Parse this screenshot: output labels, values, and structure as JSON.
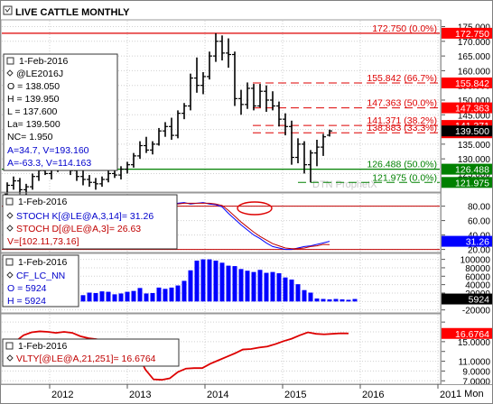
{
  "title": "LIVE CATTLE MONTHLY",
  "timeframe_label": "1 Mon",
  "watermark": "DTN ProphetX",
  "colors": {
    "bars": "#000000",
    "axis_bg_red": "#ff0000",
    "axis_bg_green": "#008000",
    "axis_bg_black": "#000000",
    "axis_bg_blue": "#0000ff",
    "stoch_k": "#0000ff",
    "stoch_d": "#c00000",
    "cf_bars": "#0000ff",
    "vlty": "#dd0000",
    "fib_line": "#dd0000",
    "support_line": "#008000"
  },
  "chart_data": [
    {
      "type": "bar",
      "name": "price",
      "ylim": [
        119,
        177
      ],
      "yticks": [
        125,
        130,
        135,
        140,
        145,
        150,
        155,
        160,
        165,
        170,
        175
      ],
      "xticks": [
        "2012",
        "2013",
        "2014",
        "2015",
        "2016",
        "201"
      ],
      "info": {
        "date": "1-Feb-2016",
        "symbol": "@LE2016J",
        "open": "O = 138.050",
        "high": "H = 139.950",
        "low": "L = 137.600",
        "last": "La= 139.500",
        "net_change": "NC= 1.950",
        "cursor1": "A=34.7, V=193.160",
        "cursor2": "A=-63.3, V=114.163"
      },
      "levels": [
        {
          "label": "172.750 (0.0%)",
          "value": 172.75,
          "axis": "172.750",
          "style": "solid",
          "color": "red"
        },
        {
          "label": "155.842 (66.7%)",
          "value": 155.842,
          "axis": "155.842",
          "style": "dashed",
          "color": "red"
        },
        {
          "label": "147.363 (50.0%)",
          "value": 147.363,
          "axis": "147.363",
          "style": "dashed",
          "color": "red"
        },
        {
          "label": "141.371 (38.2%)",
          "value": 141.371,
          "axis": "141.371",
          "style": "dashed",
          "color": "red"
        },
        {
          "label": "138.883 (33.3%)",
          "value": 138.883,
          "axis": "138.883",
          "style": "dashed",
          "color": "red"
        },
        {
          "label": "126.488 (50.0%)",
          "value": 126.488,
          "axis": "126.488",
          "style": "solid",
          "color": "green"
        },
        {
          "label": "121.975 (0.0%)",
          "value": 121.975,
          "axis": "121.975",
          "style": "dashed",
          "color": "green"
        }
      ],
      "last_price": "139.500",
      "last_price_value": 139.5,
      "bars": [
        {
          "o": 118.0,
          "h": 122.0,
          "l": 116.5,
          "c": 121.0
        },
        {
          "o": 121.0,
          "h": 124.0,
          "l": 119.5,
          "c": 122.5
        },
        {
          "o": 122.5,
          "h": 123.5,
          "l": 118.0,
          "c": 119.5
        },
        {
          "o": 119.5,
          "h": 121.5,
          "l": 117.0,
          "c": 120.5
        },
        {
          "o": 120.5,
          "h": 125.0,
          "l": 119.5,
          "c": 124.0
        },
        {
          "o": 124.0,
          "h": 127.0,
          "l": 122.5,
          "c": 126.0
        },
        {
          "o": 126.0,
          "h": 128.5,
          "l": 124.5,
          "c": 125.0
        },
        {
          "o": 125.0,
          "h": 127.5,
          "l": 123.0,
          "c": 126.5
        },
        {
          "o": 126.5,
          "h": 130.5,
          "l": 125.5,
          "c": 129.5
        },
        {
          "o": 129.5,
          "h": 131.5,
          "l": 127.5,
          "c": 128.5
        },
        {
          "o": 128.5,
          "h": 130.0,
          "l": 124.5,
          "c": 126.0
        },
        {
          "o": 126.0,
          "h": 127.5,
          "l": 122.5,
          "c": 124.0
        },
        {
          "o": 124.0,
          "h": 126.0,
          "l": 121.0,
          "c": 123.0
        },
        {
          "o": 123.0,
          "h": 124.5,
          "l": 120.5,
          "c": 122.0
        },
        {
          "o": 122.0,
          "h": 123.5,
          "l": 119.5,
          "c": 121.5
        },
        {
          "o": 121.5,
          "h": 124.0,
          "l": 120.5,
          "c": 123.0
        },
        {
          "o": 123.0,
          "h": 126.0,
          "l": 122.0,
          "c": 125.0
        },
        {
          "o": 125.0,
          "h": 127.0,
          "l": 123.5,
          "c": 124.5
        },
        {
          "o": 124.5,
          "h": 127.5,
          "l": 123.0,
          "c": 126.5
        },
        {
          "o": 126.5,
          "h": 129.0,
          "l": 125.0,
          "c": 128.0
        },
        {
          "o": 128.0,
          "h": 132.0,
          "l": 127.0,
          "c": 131.0
        },
        {
          "o": 131.0,
          "h": 136.0,
          "l": 130.0,
          "c": 134.5
        },
        {
          "o": 134.5,
          "h": 137.5,
          "l": 132.0,
          "c": 133.0
        },
        {
          "o": 133.0,
          "h": 136.0,
          "l": 131.5,
          "c": 135.0
        },
        {
          "o": 135.0,
          "h": 140.5,
          "l": 134.5,
          "c": 139.5
        },
        {
          "o": 139.5,
          "h": 142.5,
          "l": 137.5,
          "c": 141.0
        },
        {
          "o": 141.0,
          "h": 144.0,
          "l": 136.5,
          "c": 138.0
        },
        {
          "o": 138.0,
          "h": 146.5,
          "l": 137.0,
          "c": 145.5
        },
        {
          "o": 145.5,
          "h": 149.0,
          "l": 143.5,
          "c": 148.0
        },
        {
          "o": 148.0,
          "h": 159.0,
          "l": 146.5,
          "c": 157.5
        },
        {
          "o": 157.5,
          "h": 164.5,
          "l": 152.5,
          "c": 155.0
        },
        {
          "o": 155.0,
          "h": 159.5,
          "l": 152.0,
          "c": 158.0
        },
        {
          "o": 158.0,
          "h": 166.5,
          "l": 157.0,
          "c": 165.0
        },
        {
          "o": 165.0,
          "h": 172.75,
          "l": 163.0,
          "c": 170.0
        },
        {
          "o": 170.0,
          "h": 172.0,
          "l": 163.5,
          "c": 166.0
        },
        {
          "o": 166.0,
          "h": 171.0,
          "l": 161.0,
          "c": 165.5
        },
        {
          "o": 165.5,
          "h": 166.5,
          "l": 148.0,
          "c": 150.5
        },
        {
          "o": 150.5,
          "h": 153.5,
          "l": 145.0,
          "c": 148.5
        },
        {
          "o": 148.5,
          "h": 156.0,
          "l": 147.0,
          "c": 154.0
        },
        {
          "o": 154.0,
          "h": 155.5,
          "l": 146.5,
          "c": 148.0
        },
        {
          "o": 148.0,
          "h": 155.5,
          "l": 147.5,
          "c": 153.0
        },
        {
          "o": 153.0,
          "h": 155.0,
          "l": 146.0,
          "c": 150.0
        },
        {
          "o": 150.0,
          "h": 153.0,
          "l": 146.5,
          "c": 148.0
        },
        {
          "o": 148.0,
          "h": 149.5,
          "l": 141.0,
          "c": 143.5
        },
        {
          "o": 143.5,
          "h": 145.5,
          "l": 138.0,
          "c": 141.0
        },
        {
          "o": 141.0,
          "h": 143.0,
          "l": 128.0,
          "c": 130.5
        },
        {
          "o": 130.5,
          "h": 137.0,
          "l": 128.5,
          "c": 135.0
        },
        {
          "o": 135.0,
          "h": 136.0,
          "l": 125.0,
          "c": 128.0
        },
        {
          "o": 128.0,
          "h": 133.0,
          "l": 121.975,
          "c": 132.0
        },
        {
          "o": 132.0,
          "h": 136.5,
          "l": 127.5,
          "c": 134.0
        },
        {
          "o": 134.0,
          "h": 138.5,
          "l": 131.0,
          "c": 137.5
        },
        {
          "o": 138.05,
          "h": 139.95,
          "l": 137.6,
          "c": 139.5
        }
      ]
    },
    {
      "type": "line",
      "name": "stochastic",
      "ylim": [
        17,
        97
      ],
      "yticks": [
        80,
        60,
        40,
        20
      ],
      "last_value": "31.26",
      "last_value_num": 31.26,
      "info": {
        "date": "1-Feb-2016",
        "k_label": "STOCH K[@LE@A,3,14]= 31.26",
        "d_label": "STOCH D[@LE@A,3]= 26.63",
        "v_label": "V=[102.11,73.16]"
      },
      "overbought": 80,
      "oversold": 20,
      "series": [
        {
          "key": "k",
          "values": [
            74,
            76,
            78,
            80,
            81,
            80,
            79,
            80,
            82,
            84,
            85,
            83,
            84,
            85,
            83,
            82,
            79,
            70,
            62,
            54,
            47,
            40,
            35,
            29,
            24,
            22,
            20,
            20,
            22,
            24,
            25,
            27,
            29,
            31.26
          ]
        },
        {
          "key": "d",
          "values": [
            72,
            74,
            76,
            78,
            80,
            81,
            80,
            80,
            81,
            83,
            84,
            84,
            84,
            84,
            84,
            83,
            81,
            74,
            66,
            58,
            51,
            44,
            38,
            33,
            28,
            25,
            22,
            21,
            21,
            22,
            24,
            25,
            27,
            26.63
          ]
        }
      ]
    },
    {
      "type": "bar",
      "name": "commitment_of_traders",
      "ylim": [
        -25000,
        112000
      ],
      "yticks": [
        100000,
        80000,
        60000,
        40000,
        20000,
        0,
        -20000
      ],
      "ytick_labels": [
        "100000",
        "80000",
        "60000",
        "40000",
        "20000",
        "",
        "-20000"
      ],
      "last_value": "5924",
      "last_value_num": 5924,
      "info": {
        "date": "1-Feb-2016",
        "symbol": "CF_LC_NN",
        "open": "O = 5924",
        "high": "H = 5924"
      },
      "values": [
        15000,
        21000,
        20000,
        24000,
        23000,
        17000,
        19000,
        23000,
        25000,
        32000,
        19000,
        20000,
        33000,
        30000,
        33000,
        38000,
        49000,
        74000,
        97000,
        100000,
        100000,
        97000,
        92000,
        85000,
        84000,
        77000,
        73000,
        70000,
        75000,
        68000,
        70000,
        67000,
        57000,
        52000,
        41000,
        27000,
        21000,
        7000,
        6000,
        5000,
        6000,
        5000,
        4000,
        5924
      ]
    },
    {
      "type": "line",
      "name": "volatility",
      "ylim": [
        6.5,
        20.5
      ],
      "yticks": [
        19,
        17,
        15,
        13,
        11,
        9,
        7
      ],
      "ytick_labels": [
        "",
        "",
        "15.0000",
        "",
        "11.0000",
        "9.0000",
        "7.0000"
      ],
      "last_value": "16.6764",
      "last_value_num": 16.6764,
      "info": {
        "date": "1-Feb-2016",
        "label": "VLTY[@LE@A,21,251]= 16.6764"
      },
      "series": [
        {
          "key": "vlty",
          "values": [
            15.2,
            15.0,
            16.3,
            16.9,
            17.1,
            17.0,
            16.8,
            17.0,
            16.8,
            16.1,
            15.7,
            15.5,
            15.0,
            14.2,
            13.5,
            13.0,
            12.6,
            9.3,
            7.3,
            7.2,
            7.5,
            8.8,
            9.5,
            9.6,
            9.6,
            10.5,
            11.2,
            11.9,
            12.6,
            13.4,
            13.5,
            13.8,
            14.0,
            14.5,
            15.1,
            15.6,
            16.3,
            16.9,
            16.6,
            16.5,
            16.6,
            16.7,
            16.6764
          ]
        }
      ]
    }
  ]
}
